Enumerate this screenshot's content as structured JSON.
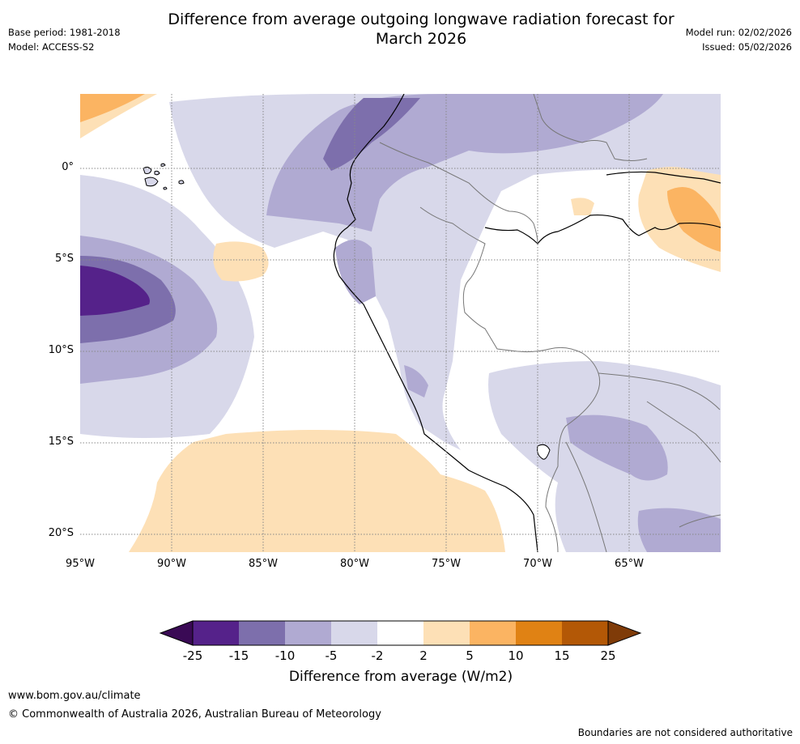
{
  "header": {
    "title_line1": "Difference from average outgoing longwave radiation forecast for",
    "title_line2": "March 2026",
    "base_period": "Base period: 1981-2018",
    "model": "Model: ACCESS-S2",
    "model_run": "Model run: 02/02/2026",
    "issued": "Issued: 05/02/2026"
  },
  "map": {
    "lat_labels": [
      "0°",
      "5°S",
      "10°S",
      "15°S",
      "20°S"
    ],
    "lon_labels": [
      "95°W",
      "90°W",
      "85°W",
      "80°W",
      "75°W",
      "70°W",
      "65°W"
    ]
  },
  "colorbar": {
    "title": "Difference from average (W/m2)",
    "ticks": [
      "-25",
      "-15",
      "-10",
      "-5",
      "-2",
      "2",
      "5",
      "10",
      "15",
      "25"
    ],
    "colors": [
      "#3a0a55",
      "#55228a",
      "#7d6fac",
      "#b0aad2",
      "#d8d8ea",
      "#ffffff",
      "#fde0b6",
      "#fbb462",
      "#e08214",
      "#b35806",
      "#7f3b08"
    ]
  },
  "footer": {
    "website": "www.bom.gov.au/climate",
    "copyright": "© Commonwealth of Australia 2026, Australian Bureau of Meteorology",
    "disclaimer": "Boundaries are not considered authoritative"
  }
}
